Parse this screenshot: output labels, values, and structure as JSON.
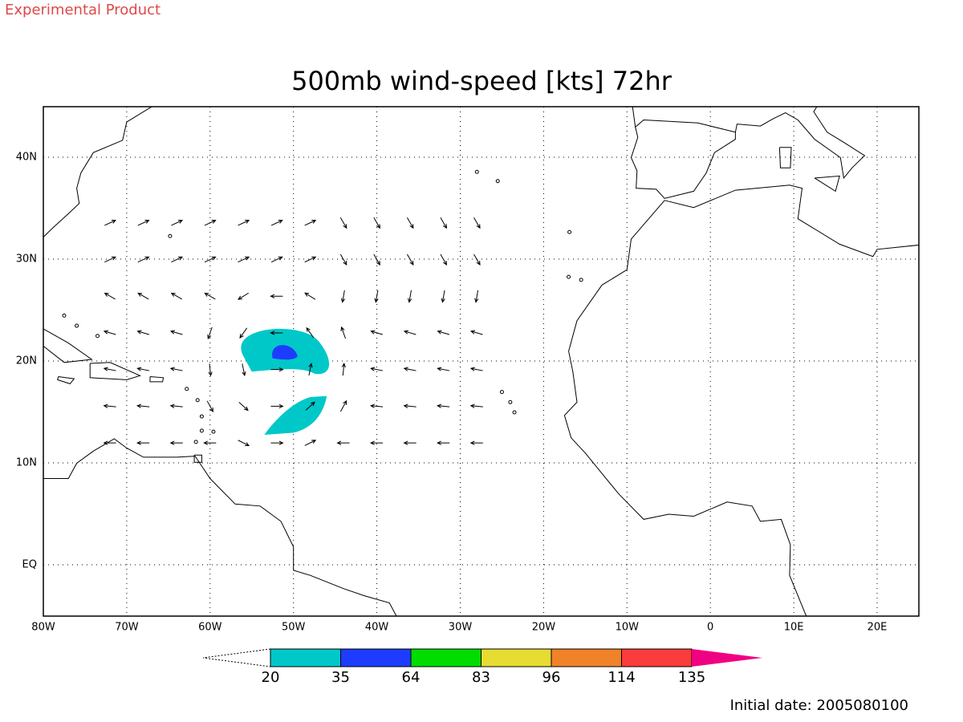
{
  "header": {
    "text": "Experimental Product"
  },
  "map": {
    "title": "500mb wind-speed [kts] 72hr",
    "lon_labels": [
      "80W",
      "70W",
      "60W",
      "50W",
      "40W",
      "30W",
      "20W",
      "10W",
      "0",
      "10E",
      "20E"
    ],
    "lat_labels": [
      "40N",
      "30N",
      "20N",
      "10N",
      "EQ"
    ]
  },
  "colorbar": {
    "levels": [
      20,
      35,
      64,
      83,
      96,
      114,
      135
    ],
    "colors": [
      "#00c8c8",
      "#1e3cff",
      "#00dc00",
      "#e6dc32",
      "#f08228",
      "#fa3c3c",
      "#f00082"
    ]
  },
  "footer": {
    "text": "Initial date: 2005080100"
  }
}
